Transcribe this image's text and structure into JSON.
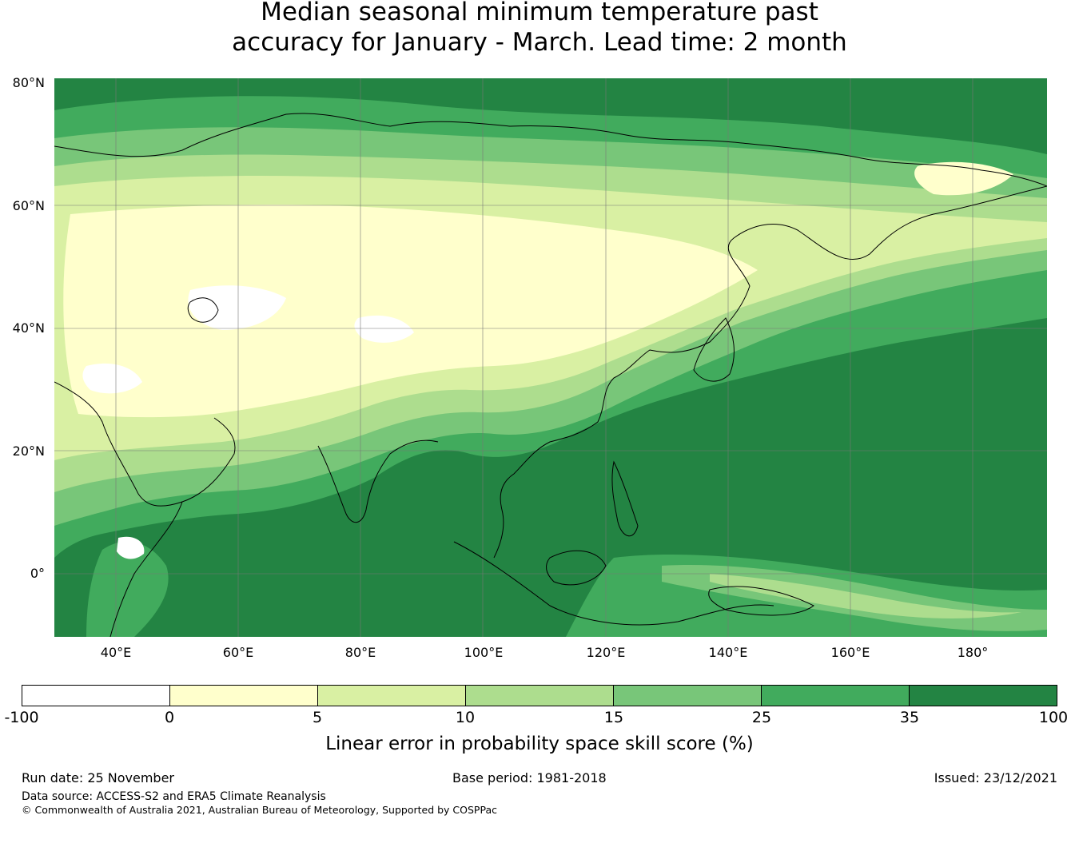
{
  "title": {
    "line1": "Median seasonal minimum temperature past",
    "line2": "accuracy for January - March. Lead time: 2 month"
  },
  "map": {
    "lat_labels": [
      "80°N",
      "60°N",
      "40°N",
      "20°N",
      "0°"
    ],
    "lon_labels": [
      "40°E",
      "60°E",
      "80°E",
      "100°E",
      "120°E",
      "140°E",
      "160°E",
      "180°"
    ]
  },
  "colorbar": {
    "label": "Linear error in probability space skill score (%)",
    "ticks": [
      "-100",
      "0",
      "5",
      "10",
      "15",
      "25",
      "35",
      "100"
    ],
    "colors": [
      "#ffffff",
      "#ffffcc",
      "#d9f0a3",
      "#addd8e",
      "#78c679",
      "#41ab5d",
      "#238443"
    ]
  },
  "footer": {
    "run_date": "Run date: 25 November",
    "base_period": "Base period: 1981-2018",
    "issued": "Issued: 23/12/2021",
    "data_source": "Data source: ACCESS-S2 and ERA5 Climate Reanalysis",
    "copyright": "© Commonwealth of Australia 2021, Australian Bureau of Meteorology, Supported by COSPPac"
  }
}
